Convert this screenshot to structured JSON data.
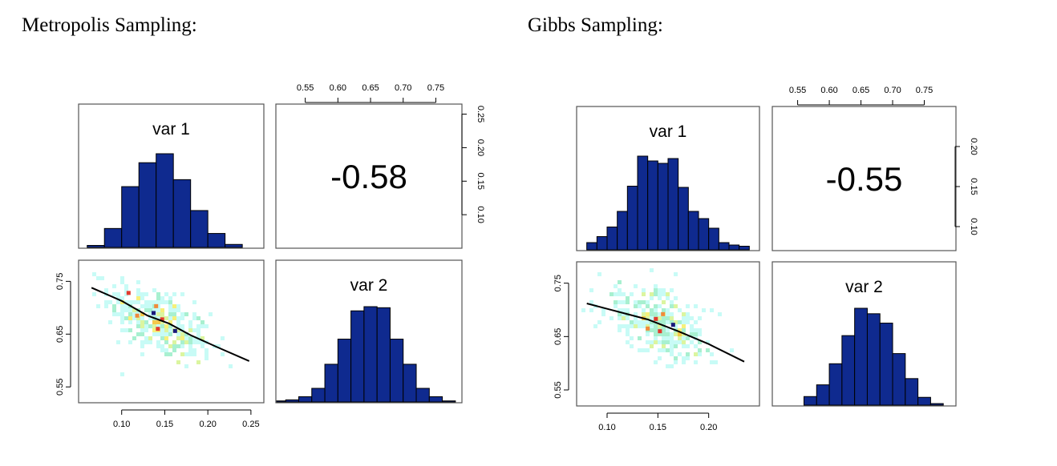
{
  "titles": {
    "left": "Metropolis Sampling:",
    "right": "Gibbs Sampling:"
  },
  "colors": {
    "histogram_fill": "#0F2A8F",
    "histogram_stroke": "#000000",
    "smooth_line": "#000000",
    "panel_border": "#555555",
    "density_palette": [
      "#c8fbf6",
      "#a8f0d0",
      "#dbf5a0",
      "#f6f07a",
      "#f5c84c",
      "#f08a3a",
      "#e23a2e"
    ]
  },
  "chart_data": [
    {
      "type": "pairs",
      "name": "Metropolis Sampling",
      "variables": [
        "var 1",
        "var 2"
      ],
      "correlation": "-0.58",
      "var1_axis": {
        "ticks": [
          0.1,
          0.15,
          0.2,
          0.25
        ],
        "tick_labels": [
          "0.10",
          "0.15",
          "0.20",
          "0.25"
        ],
        "range": [
          0.055,
          0.26
        ]
      },
      "var2_axis": {
        "ticks": [
          0.55,
          0.6,
          0.65,
          0.7,
          0.75
        ],
        "tick_labels": [
          "0.55",
          "0.60",
          "0.65",
          "0.70",
          "0.75"
        ],
        "range": [
          0.505,
          0.79
        ]
      },
      "hist_var1_axis": {
        "ticks": [
          0.1,
          0.15,
          0.2,
          0.25
        ],
        "tick_labels": [
          "0.10",
          "0.15",
          "0.20",
          "0.25"
        ],
        "range": [
          0.05,
          0.265
        ]
      },
      "scatter_y_axis": {
        "ticks": [
          0.55,
          0.65,
          0.75
        ],
        "tick_labels": [
          "0.55",
          "0.65",
          "0.75"
        ],
        "range": [
          0.52,
          0.79
        ]
      },
      "hist_var1": {
        "bins": [
          0.06,
          0.08,
          0.1,
          0.12,
          0.14,
          0.16,
          0.18,
          0.2,
          0.22,
          0.24
        ],
        "counts": [
          2,
          19,
          61,
          85,
          94,
          68,
          37,
          14,
          3
        ]
      },
      "hist_var2": {
        "bins": [
          0.5,
          0.52,
          0.54,
          0.56,
          0.58,
          0.6,
          0.62,
          0.64,
          0.66,
          0.68,
          0.7,
          0.72,
          0.74,
          0.76,
          0.78
        ],
        "counts": [
          1,
          2,
          5,
          13,
          36,
          60,
          87,
          91,
          90,
          60,
          36,
          13,
          5,
          1
        ]
      },
      "scatter": {
        "center": [
          0.145,
          0.67
        ],
        "sd": [
          0.03,
          0.038
        ],
        "rho": -0.58,
        "n_points": 360,
        "hot_points": [
          [
            0.108,
            0.728
          ],
          [
            0.118,
            0.685
          ],
          [
            0.137,
            0.69
          ],
          [
            0.14,
            0.703
          ],
          [
            0.147,
            0.678
          ],
          [
            0.162,
            0.656
          ],
          [
            0.142,
            0.66
          ]
        ],
        "smooth_line": [
          [
            0.065,
            0.738
          ],
          [
            0.1,
            0.713
          ],
          [
            0.13,
            0.685
          ],
          [
            0.155,
            0.67
          ],
          [
            0.18,
            0.648
          ],
          [
            0.21,
            0.626
          ],
          [
            0.248,
            0.599
          ]
        ]
      }
    },
    {
      "type": "pairs",
      "name": "Gibbs Sampling",
      "variables": [
        "var 1",
        "var 2"
      ],
      "correlation": "-0.55",
      "var1_axis": {
        "ticks": [
          0.1,
          0.15,
          0.2
        ],
        "tick_labels": [
          "0.10",
          "0.15",
          "0.20"
        ],
        "range": [
          0.07,
          0.245
        ]
      },
      "var2_axis": {
        "ticks": [
          0.55,
          0.6,
          0.65,
          0.7,
          0.75
        ],
        "tick_labels": [
          "0.55",
          "0.60",
          "0.65",
          "0.70",
          "0.75"
        ],
        "range": [
          0.51,
          0.8
        ]
      },
      "hist_var1_axis": {
        "ticks": [
          0.1,
          0.15,
          0.2
        ],
        "tick_labels": [
          "0.10",
          "0.15",
          "0.20"
        ],
        "range": [
          0.07,
          0.25
        ]
      },
      "scatter_y_axis": {
        "ticks": [
          0.55,
          0.65,
          0.75
        ],
        "tick_labels": [
          "0.55",
          "0.65",
          "0.75"
        ],
        "range": [
          0.52,
          0.79
        ]
      },
      "hist_var1": {
        "bins": [
          0.08,
          0.09,
          0.1,
          0.11,
          0.12,
          0.13,
          0.14,
          0.15,
          0.16,
          0.17,
          0.18,
          0.19,
          0.2,
          0.21,
          0.22,
          0.23,
          0.24
        ],
        "counts": [
          6,
          11,
          19,
          32,
          53,
          78,
          74,
          72,
          76,
          52,
          32,
          26,
          18,
          6,
          4,
          3
        ]
      },
      "hist_var2": {
        "bins": [
          0.52,
          0.54,
          0.56,
          0.58,
          0.6,
          0.62,
          0.64,
          0.66,
          0.68,
          0.7,
          0.72,
          0.74,
          0.76,
          0.78,
          0.8
        ],
        "counts": [
          0,
          0,
          11,
          26,
          53,
          89,
          124,
          117,
          105,
          66,
          34,
          10,
          2,
          0
        ]
      },
      "scatter": {
        "center": [
          0.15,
          0.675
        ],
        "sd": [
          0.028,
          0.036
        ],
        "rho": -0.55,
        "n_points": 340,
        "hot_points": [
          [
            0.148,
            0.683
          ],
          [
            0.155,
            0.692
          ],
          [
            0.165,
            0.672
          ],
          [
            0.14,
            0.665
          ],
          [
            0.152,
            0.66
          ]
        ],
        "smooth_line": [
          [
            0.08,
            0.712
          ],
          [
            0.11,
            0.697
          ],
          [
            0.14,
            0.682
          ],
          [
            0.17,
            0.66
          ],
          [
            0.2,
            0.636
          ],
          [
            0.235,
            0.603
          ]
        ]
      }
    }
  ]
}
